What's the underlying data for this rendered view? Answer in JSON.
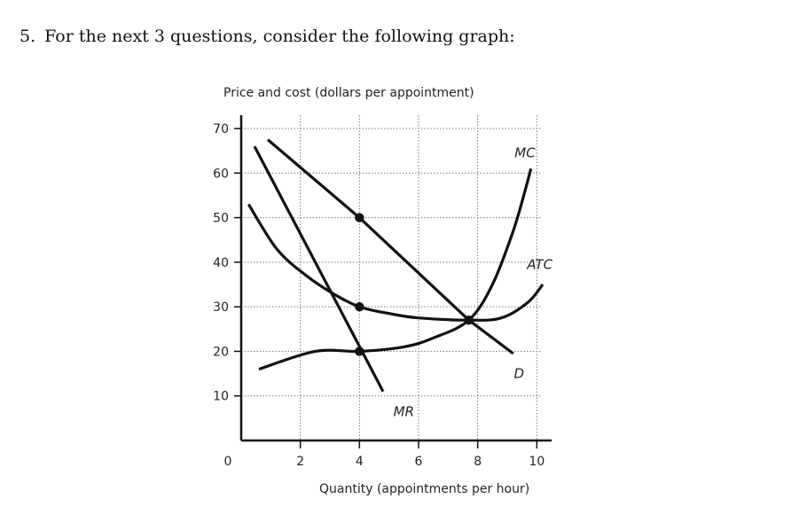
{
  "question": {
    "number": "5.",
    "text": "For the next 3 questions, consider the following graph:"
  },
  "chart_data": {
    "type": "line",
    "ylabel": "Price and cost (dollars per appointment)",
    "xlabel": "Quantity (appointments per hour)",
    "xlim": [
      0,
      10.5
    ],
    "ylim": [
      0,
      72
    ],
    "x_ticks": [
      0,
      2,
      4,
      6,
      8,
      10
    ],
    "x_tick_labels": [
      "0",
      "2",
      "4",
      "6",
      "8",
      "10"
    ],
    "y_ticks": [
      10,
      20,
      30,
      40,
      50,
      60,
      70
    ],
    "y_tick_labels": [
      "10",
      "20",
      "30",
      "40",
      "50",
      "60",
      "70"
    ],
    "grid": true,
    "series": [
      {
        "name": "D",
        "style": "line",
        "x": [
          0.9,
          4,
          7.7,
          9.2
        ],
        "y": [
          67.5,
          50,
          27,
          19.5
        ]
      },
      {
        "name": "MR",
        "style": "line",
        "x": [
          0.45,
          4.8
        ],
        "y": [
          66,
          11
        ]
      },
      {
        "name": "MC",
        "style": "curve",
        "x": [
          0.6,
          2.5,
          4,
          5.5,
          6.5,
          7.7,
          8.5,
          9.2,
          9.6,
          9.8
        ],
        "y": [
          16,
          20,
          20,
          21,
          23,
          27,
          35,
          47,
          56,
          61
        ]
      },
      {
        "name": "ATC",
        "style": "curve",
        "x": [
          0.25,
          1.2,
          2.2,
          3.1,
          4,
          5,
          6,
          7.7,
          8.8,
          9.7,
          10.2
        ],
        "y": [
          53,
          43,
          37,
          33,
          30,
          28.5,
          27.5,
          27,
          27.5,
          31,
          35
        ]
      }
    ],
    "points": [
      {
        "x": 4,
        "y": 50
      },
      {
        "x": 4,
        "y": 30
      },
      {
        "x": 4,
        "y": 20
      },
      {
        "x": 7.7,
        "y": 27
      }
    ]
  }
}
